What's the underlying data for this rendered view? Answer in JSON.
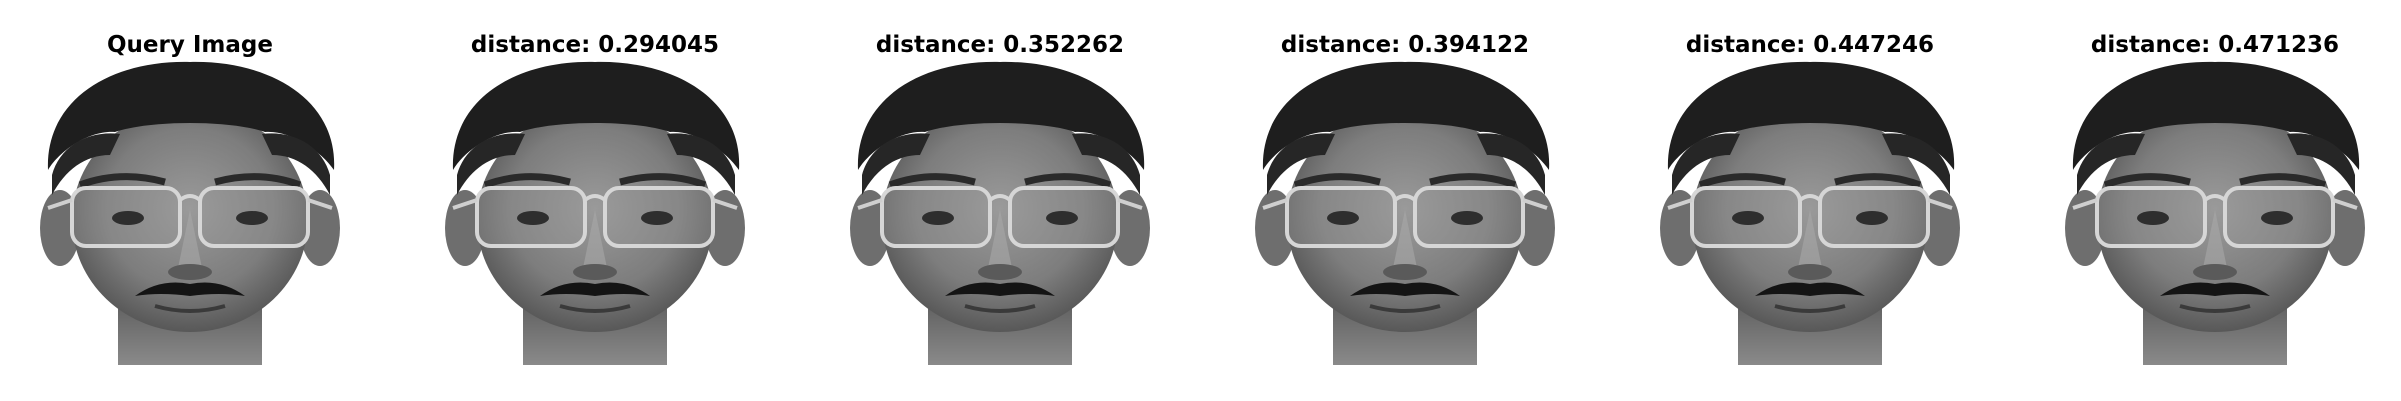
{
  "figure": {
    "panels": [
      {
        "title": "Query Image",
        "image": "grayscale-face-photo"
      },
      {
        "title": "distance: 0.294045",
        "image": "grayscale-face-photo"
      },
      {
        "title": "distance: 0.352262",
        "image": "grayscale-face-photo"
      },
      {
        "title": "distance: 0.394122",
        "image": "grayscale-face-photo"
      },
      {
        "title": "distance: 0.447246",
        "image": "grayscale-face-photo"
      },
      {
        "title": "distance: 0.471236",
        "image": "grayscale-face-photo"
      }
    ]
  }
}
